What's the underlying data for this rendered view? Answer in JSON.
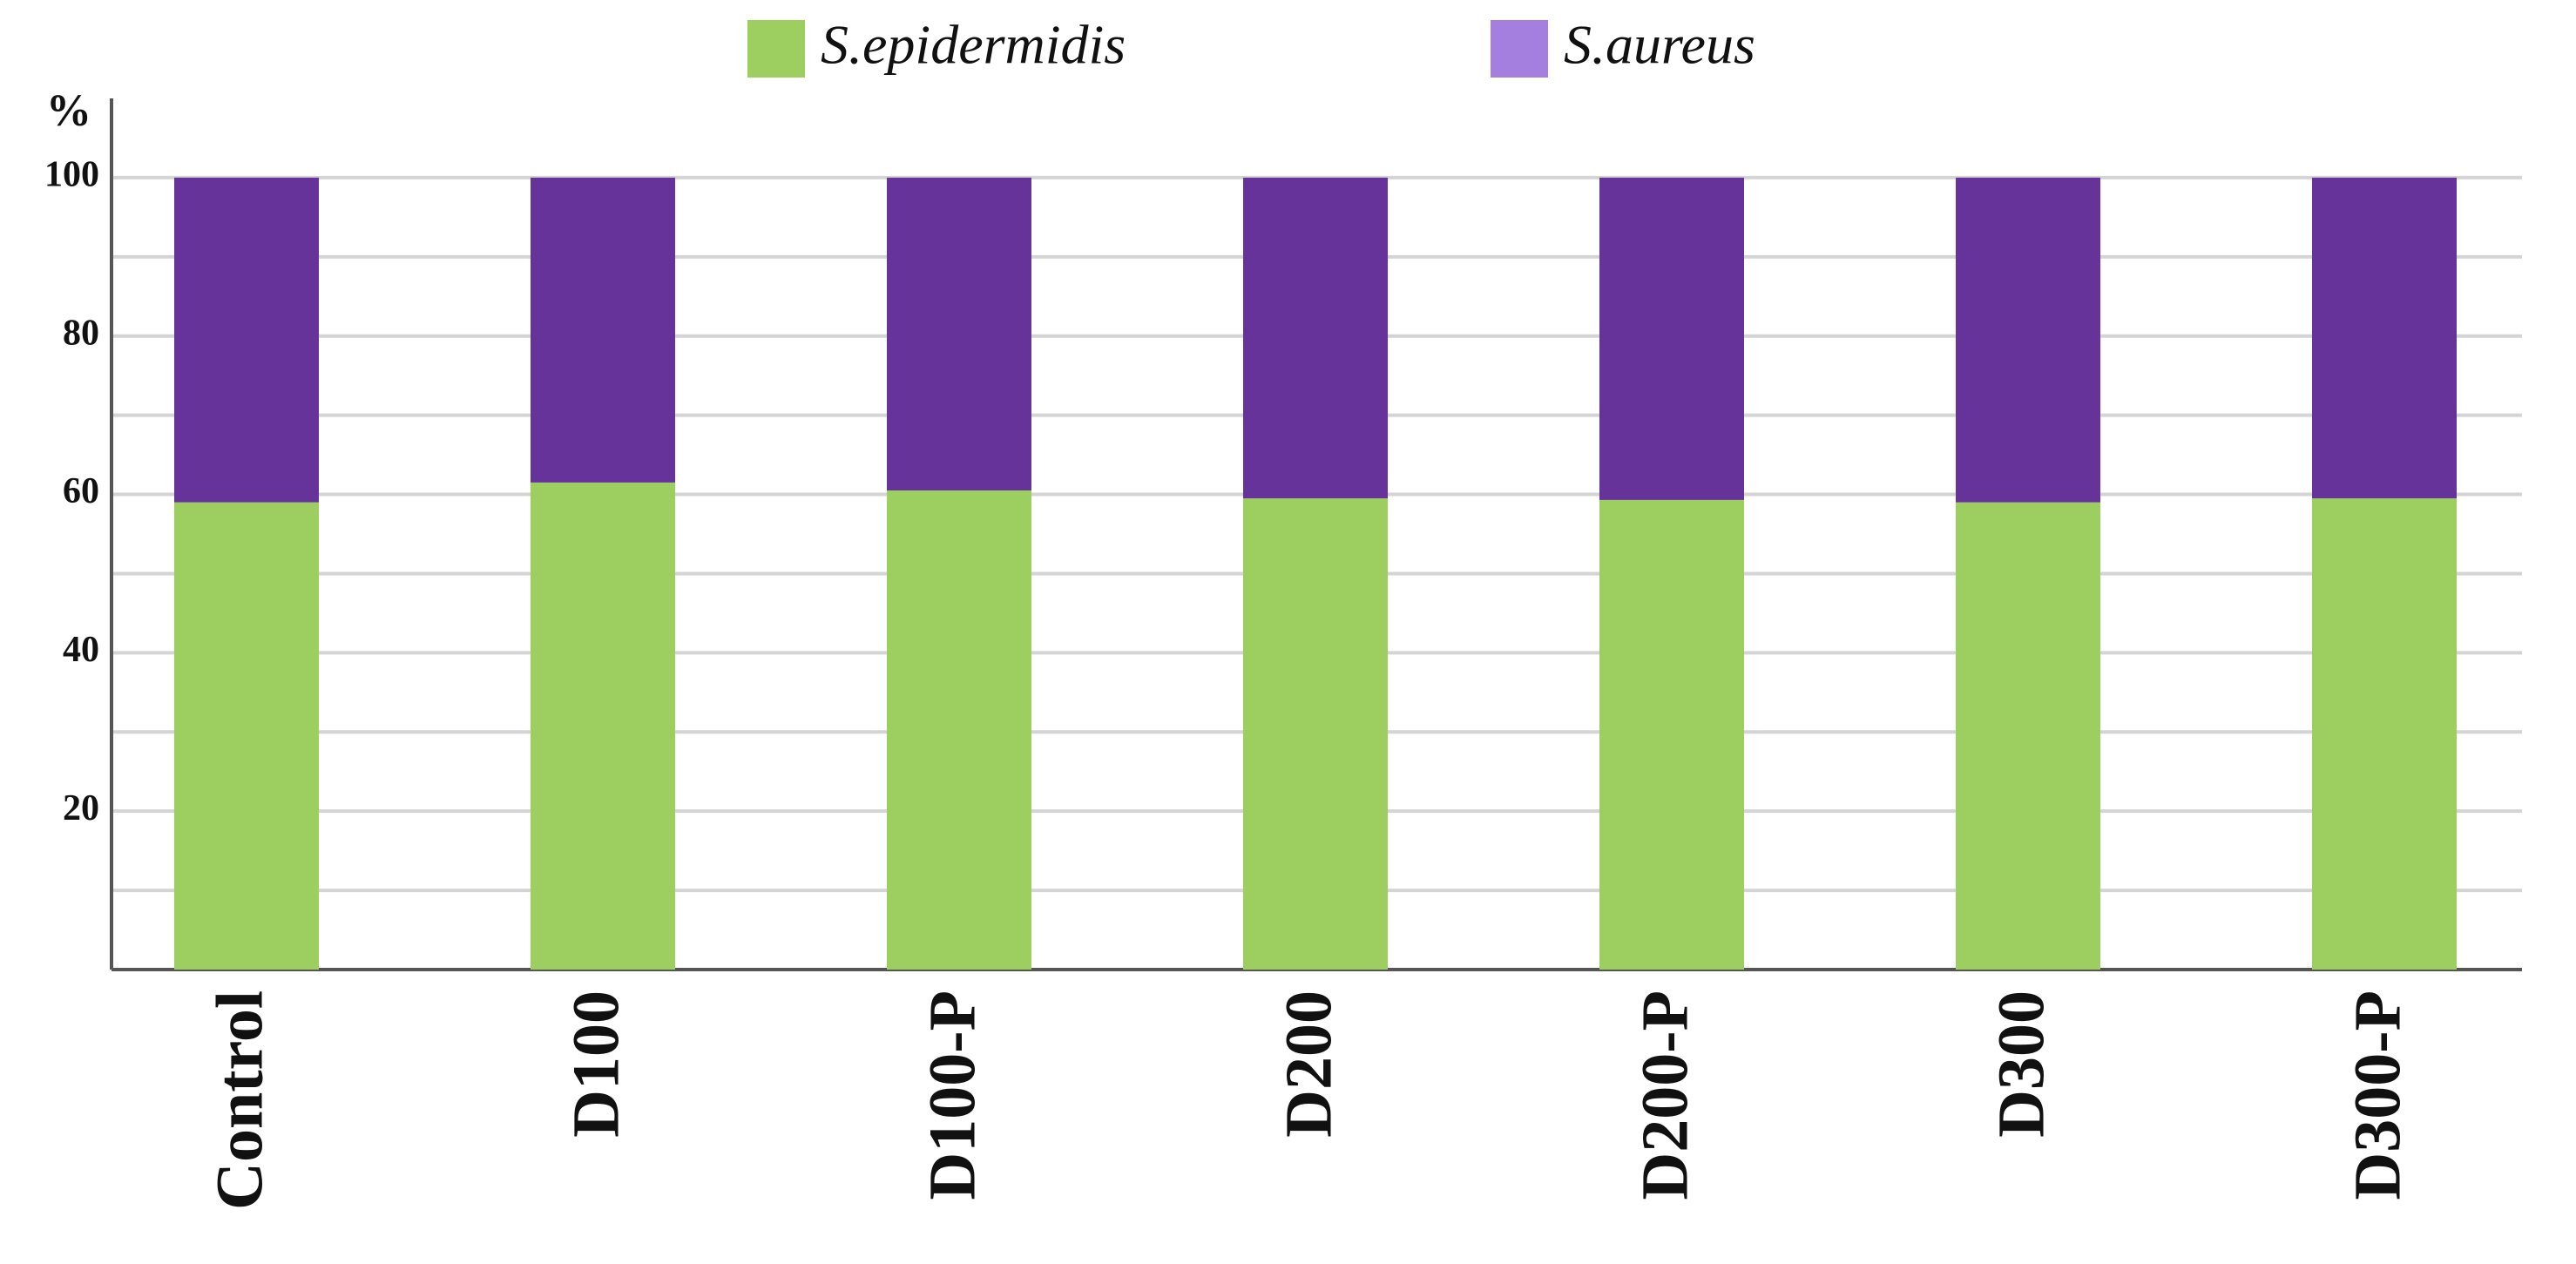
{
  "chart_data": {
    "type": "stacked_bar",
    "y_label": "%",
    "categories": [
      "Control",
      "D100",
      "D100-P",
      "D200",
      "D200-P",
      "D300",
      "D300-P"
    ],
    "series": [
      {
        "name": "S.epidermidis",
        "color": "#9ccf5f",
        "legend_color": "#9ccf5f",
        "values": [
          59,
          61.5,
          60.5,
          59.5,
          59.3,
          59,
          59.5
        ]
      },
      {
        "name": "S.aureus",
        "color": "#66339a",
        "legend_color": "#a57fe0",
        "values": [
          41,
          38.5,
          39.5,
          40.5,
          40.7,
          41,
          40.5
        ]
      }
    ],
    "ylim": [
      0,
      110
    ],
    "yticks": [
      20,
      40,
      60,
      80,
      100
    ],
    "ygrid": [
      10,
      20,
      30,
      40,
      50,
      60,
      70,
      80,
      90,
      100
    ],
    "grid": true
  }
}
